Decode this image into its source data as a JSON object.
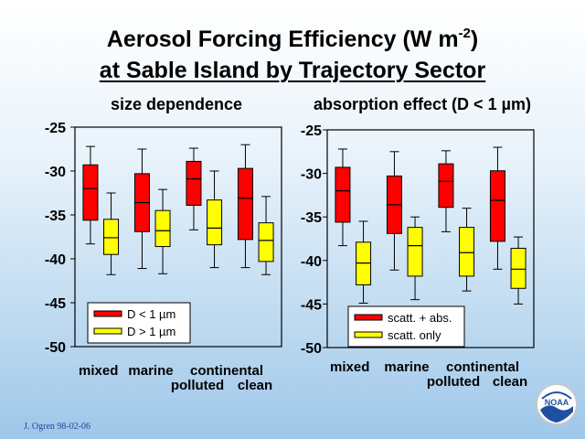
{
  "title_line1": "Aerosol Forcing Efficiency (W m",
  "title_sup": "-2",
  "title_line1_end": ")",
  "title_line2": "at Sable Island by Trajectory Sector",
  "credit": "J. Ogren 98-02-06",
  "logo_text": "NOAA",
  "colors": {
    "red": "#ff0000",
    "yellow": "#ffff00",
    "frame": "#000000",
    "background_blue": "#9ec7e9"
  },
  "chart_data": [
    {
      "type": "box",
      "title": "size dependence",
      "ylim": [
        -50,
        -25
      ],
      "yticks": [
        "-25",
        "-30",
        "-35",
        "-40",
        "-45",
        "-50"
      ],
      "categories_top": [
        "mixed",
        "marine",
        "continental"
      ],
      "categories_bottom": [
        "polluted",
        "clean"
      ],
      "legend": [
        "D < 1 µm",
        "D > 1 µm"
      ],
      "series": [
        {
          "name": "D < 1 µm",
          "color": "#ff0000",
          "boxes": [
            {
              "min": -38.3,
              "q1": -35.6,
              "median": -32.0,
              "q3": -29.3,
              "max": -27.2
            },
            {
              "min": -41.1,
              "q1": -36.9,
              "median": -33.6,
              "q3": -30.3,
              "max": -27.5
            },
            {
              "min": -36.7,
              "q1": -33.9,
              "median": -30.9,
              "q3": -28.9,
              "max": -27.4
            },
            {
              "min": -41.0,
              "q1": -37.8,
              "median": -33.1,
              "q3": -29.7,
              "max": -27.0
            }
          ]
        },
        {
          "name": "D > 1 µm",
          "color": "#ffff00",
          "boxes": [
            {
              "min": -41.8,
              "q1": -39.5,
              "median": -37.6,
              "q3": -35.5,
              "max": -32.5
            },
            {
              "min": -41.7,
              "q1": -38.6,
              "median": -36.8,
              "q3": -34.5,
              "max": -32.1
            },
            {
              "min": -41.0,
              "q1": -38.4,
              "median": -36.5,
              "q3": -33.3,
              "max": -30.0
            },
            {
              "min": -41.8,
              "q1": -40.3,
              "median": -37.9,
              "q3": -35.9,
              "max": -32.9
            }
          ]
        }
      ]
    },
    {
      "type": "box",
      "title": "absorption effect (D < 1 µm)",
      "ylim": [
        -50,
        -25
      ],
      "yticks": [
        "-25",
        "-30",
        "-35",
        "-40",
        "-45",
        "-50"
      ],
      "categories_top": [
        "mixed",
        "marine",
        "continental"
      ],
      "categories_bottom": [
        "polluted",
        "clean"
      ],
      "legend": [
        "scatt. + abs.",
        "scatt. only"
      ],
      "series": [
        {
          "name": "scatt. + abs.",
          "color": "#ff0000",
          "boxes": [
            {
              "min": -38.3,
              "q1": -35.6,
              "median": -32.0,
              "q3": -29.3,
              "max": -27.2
            },
            {
              "min": -41.1,
              "q1": -36.9,
              "median": -33.6,
              "q3": -30.3,
              "max": -27.5
            },
            {
              "min": -36.7,
              "q1": -33.9,
              "median": -30.9,
              "q3": -28.9,
              "max": -27.4
            },
            {
              "min": -41.0,
              "q1": -37.8,
              "median": -33.1,
              "q3": -29.7,
              "max": -27.0
            }
          ]
        },
        {
          "name": "scatt. only",
          "color": "#ffff00",
          "boxes": [
            {
              "min": -44.9,
              "q1": -42.8,
              "median": -40.3,
              "q3": -37.9,
              "max": -35.5
            },
            {
              "min": -44.5,
              "q1": -41.8,
              "median": -38.3,
              "q3": -36.2,
              "max": -35.0
            },
            {
              "min": -43.5,
              "q1": -41.8,
              "median": -39.1,
              "q3": -36.2,
              "max": -34.0
            },
            {
              "min": -45.0,
              "q1": -43.2,
              "median": -41.0,
              "q3": -38.6,
              "max": -37.3
            }
          ]
        }
      ]
    }
  ]
}
